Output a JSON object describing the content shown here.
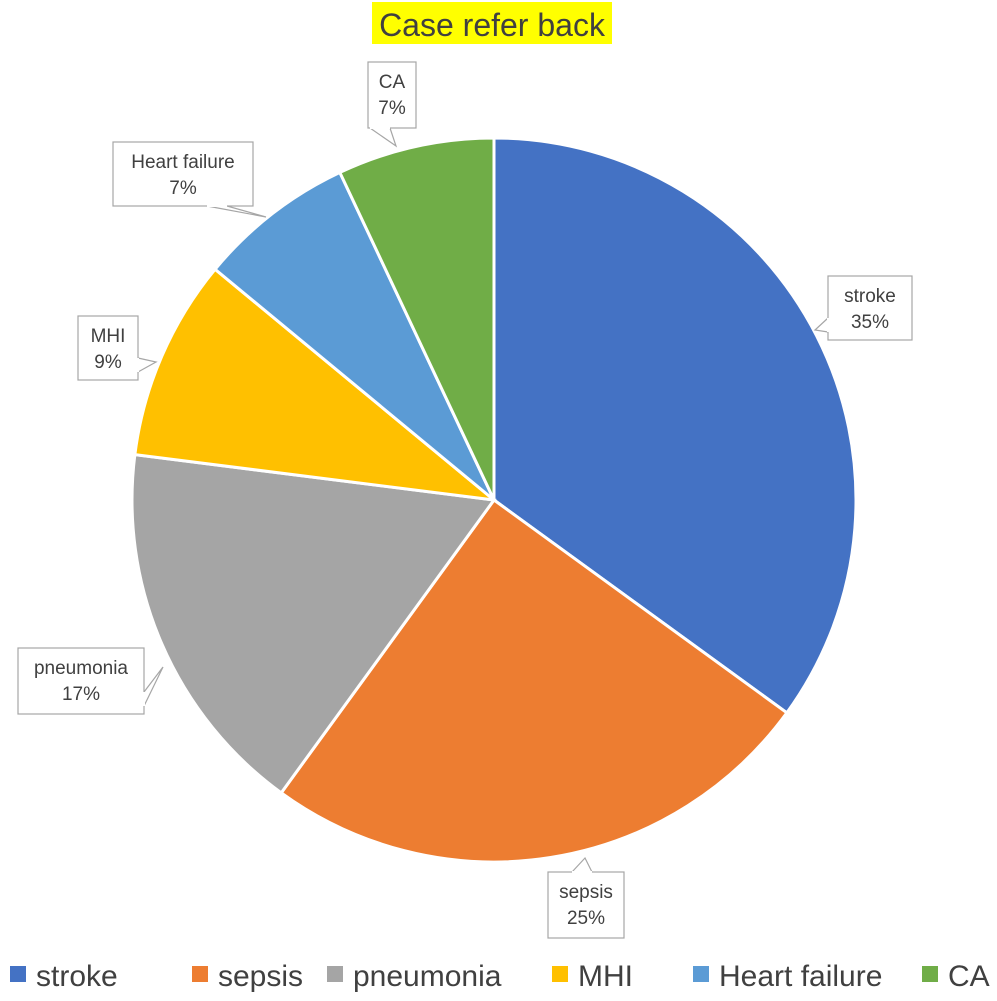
{
  "chart_data": {
    "type": "pie",
    "title": "Case refer back",
    "title_highlight_color": "#ffff00",
    "start_angle_deg": 0,
    "direction": "clockwise",
    "legend_position": "bottom",
    "slices": [
      {
        "name": "stroke",
        "value": 35,
        "label": "35%",
        "color": "#4472c4"
      },
      {
        "name": "sepsis",
        "value": 25,
        "label": "25%",
        "color": "#ed7d31"
      },
      {
        "name": "pneumonia",
        "value": 17,
        "label": "17%",
        "color": "#a5a5a5"
      },
      {
        "name": "MHI",
        "value": 9,
        "label": "9%",
        "color": "#ffc000"
      },
      {
        "name": "Heart failure",
        "value": 7,
        "label": "7%",
        "color": "#5b9bd5"
      },
      {
        "name": "CA",
        "value": 7,
        "label": "7%",
        "color": "#70ad47"
      }
    ]
  }
}
